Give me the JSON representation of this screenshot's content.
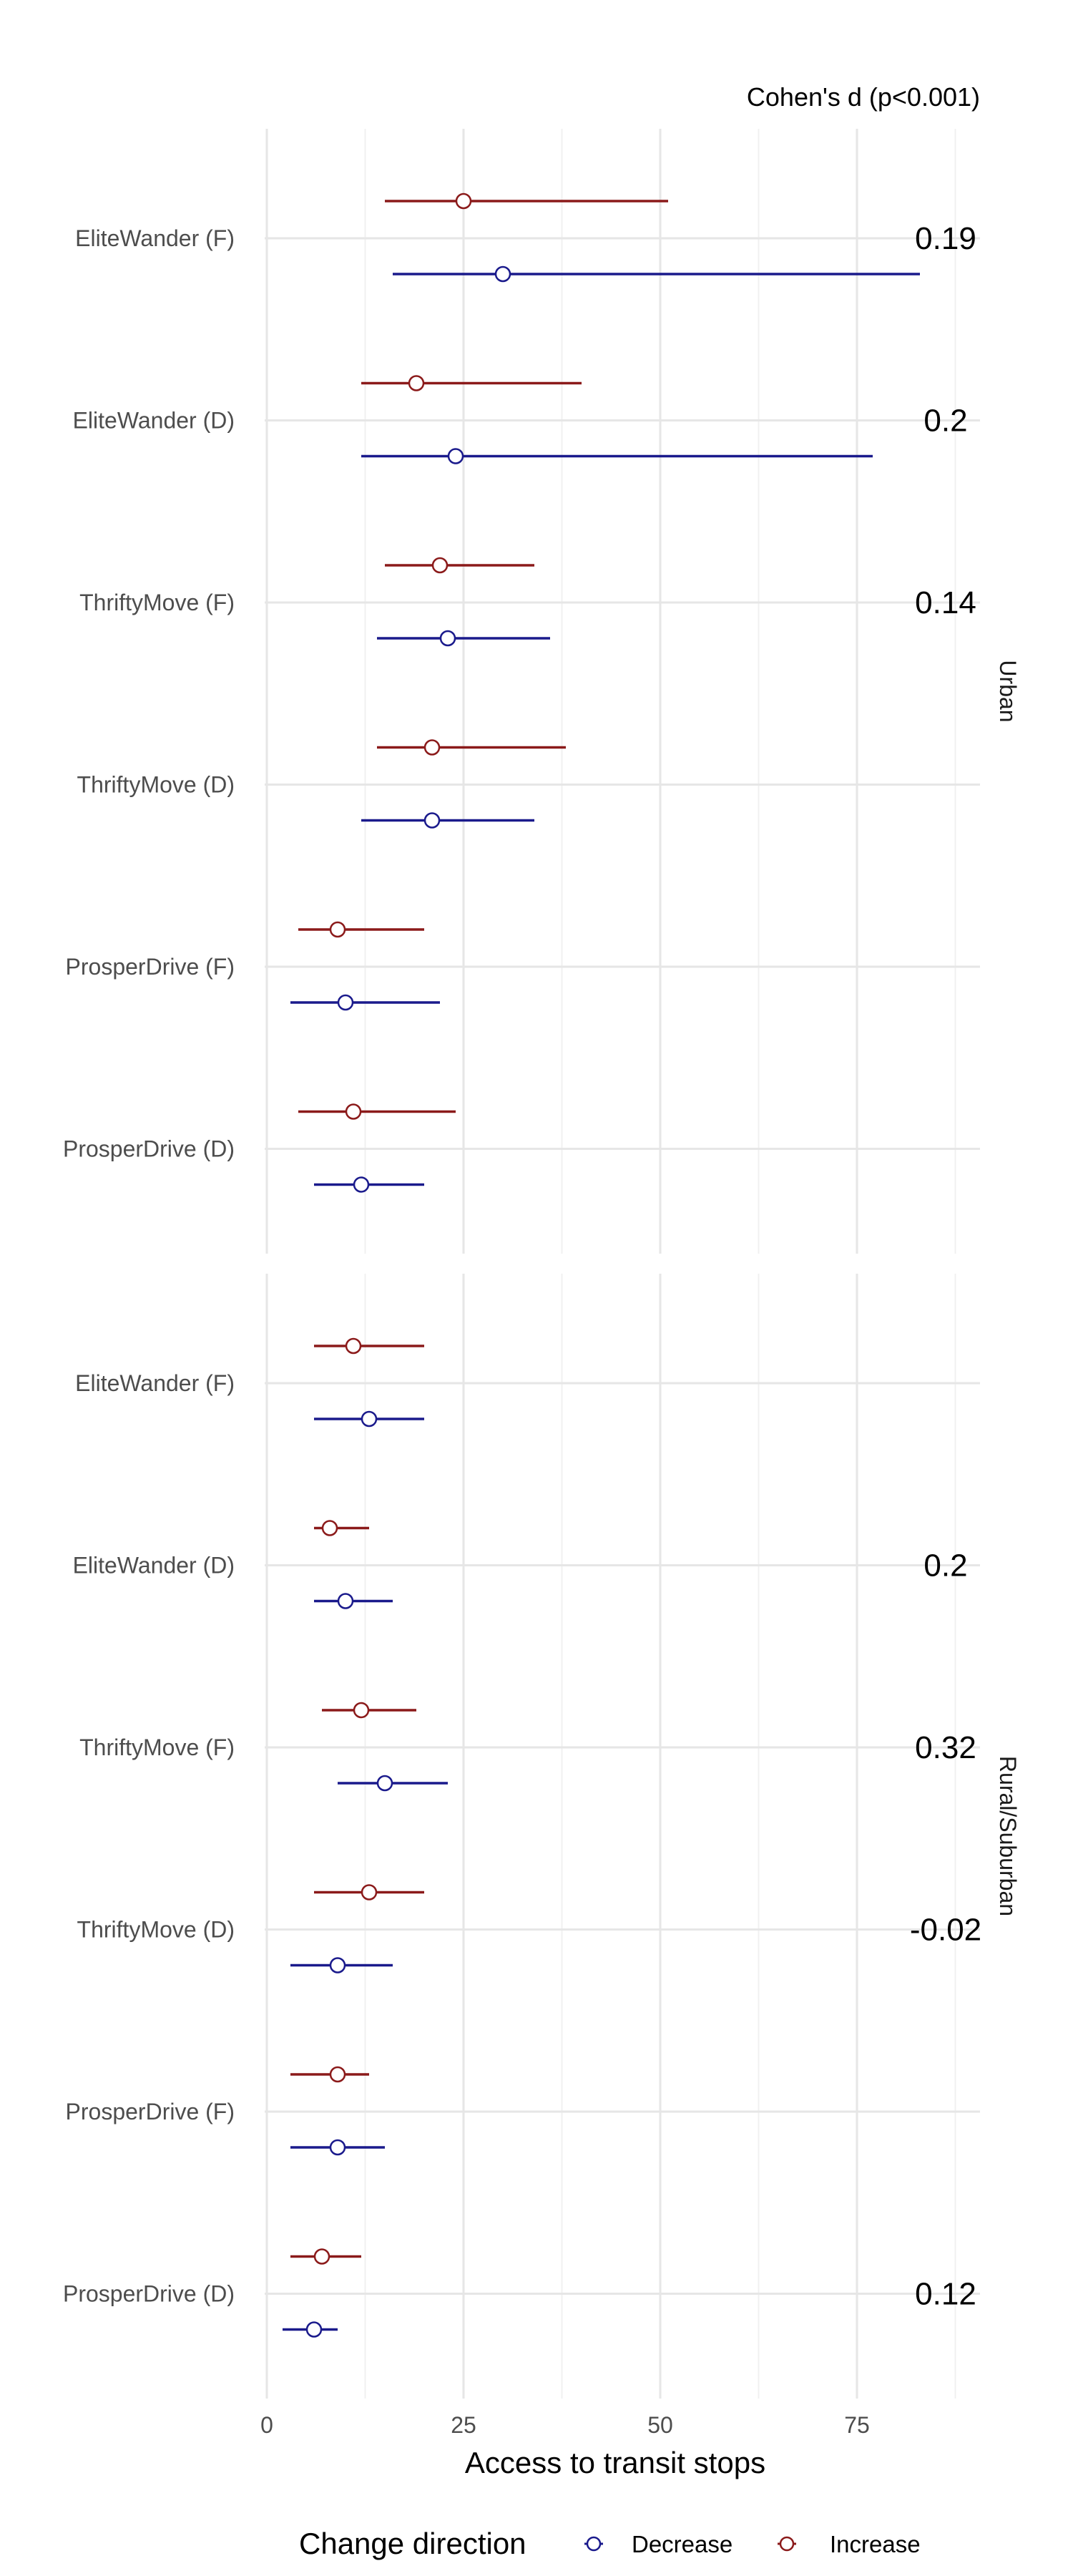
{
  "chart_data": {
    "type": "forest",
    "title": "",
    "effect_size_header": "Cohen's d (p<0.001)",
    "xlabel": "Access to transit stops",
    "xlim": [
      -1,
      90
    ],
    "xticks": [
      0,
      25,
      50,
      75
    ],
    "grid": true,
    "legend": {
      "title": "Change direction",
      "position": "bottom",
      "entries": [
        {
          "name": "Decrease",
          "color": "#1a1a8c"
        },
        {
          "name": "Increase",
          "color": "#8b1a1a"
        }
      ]
    },
    "panels": [
      {
        "name": "Urban",
        "categories": [
          "EliteWander (F)",
          "EliteWander (D)",
          "ThriftyMove (F)",
          "ThriftyMove (D)",
          "ProsperDrive (F)",
          "ProsperDrive (D)"
        ],
        "effect_sizes": [
          "0.19",
          "0.2",
          "0.14",
          "",
          "",
          ""
        ],
        "series": [
          {
            "name": "Increase",
            "values": [
              {
                "est": 25,
                "lo": 15,
                "hi": 51
              },
              {
                "est": 19,
                "lo": 12,
                "hi": 40
              },
              {
                "est": 22,
                "lo": 15,
                "hi": 34
              },
              {
                "est": 21,
                "lo": 14,
                "hi": 38
              },
              {
                "est": 9,
                "lo": 4,
                "hi": 20
              },
              {
                "est": 11,
                "lo": 4,
                "hi": 24
              }
            ]
          },
          {
            "name": "Decrease",
            "values": [
              {
                "est": 30,
                "lo": 16,
                "hi": 83
              },
              {
                "est": 24,
                "lo": 12,
                "hi": 77
              },
              {
                "est": 23,
                "lo": 14,
                "hi": 36
              },
              {
                "est": 21,
                "lo": 12,
                "hi": 34
              },
              {
                "est": 10,
                "lo": 3,
                "hi": 22
              },
              {
                "est": 12,
                "lo": 6,
                "hi": 20
              }
            ]
          }
        ]
      },
      {
        "name": "Rural/Suburban",
        "categories": [
          "EliteWander (F)",
          "EliteWander (D)",
          "ThriftyMove (F)",
          "ThriftyMove (D)",
          "ProsperDrive (F)",
          "ProsperDrive (D)"
        ],
        "effect_sizes": [
          "",
          "0.2",
          "0.32",
          "-0.02",
          "",
          "0.12"
        ],
        "series": [
          {
            "name": "Increase",
            "values": [
              {
                "est": 11,
                "lo": 6,
                "hi": 20
              },
              {
                "est": 8,
                "lo": 6,
                "hi": 13
              },
              {
                "est": 12,
                "lo": 7,
                "hi": 19
              },
              {
                "est": 13,
                "lo": 6,
                "hi": 20
              },
              {
                "est": 9,
                "lo": 3,
                "hi": 13
              },
              {
                "est": 7,
                "lo": 3,
                "hi": 12
              }
            ]
          },
          {
            "name": "Decrease",
            "values": [
              {
                "est": 13,
                "lo": 6,
                "hi": 20
              },
              {
                "est": 10,
                "lo": 6,
                "hi": 16
              },
              {
                "est": 15,
                "lo": 9,
                "hi": 23
              },
              {
                "est": 9,
                "lo": 3,
                "hi": 16
              },
              {
                "est": 9,
                "lo": 3,
                "hi": 15
              },
              {
                "est": 6,
                "lo": 2,
                "hi": 9
              }
            ]
          }
        ]
      }
    ]
  }
}
